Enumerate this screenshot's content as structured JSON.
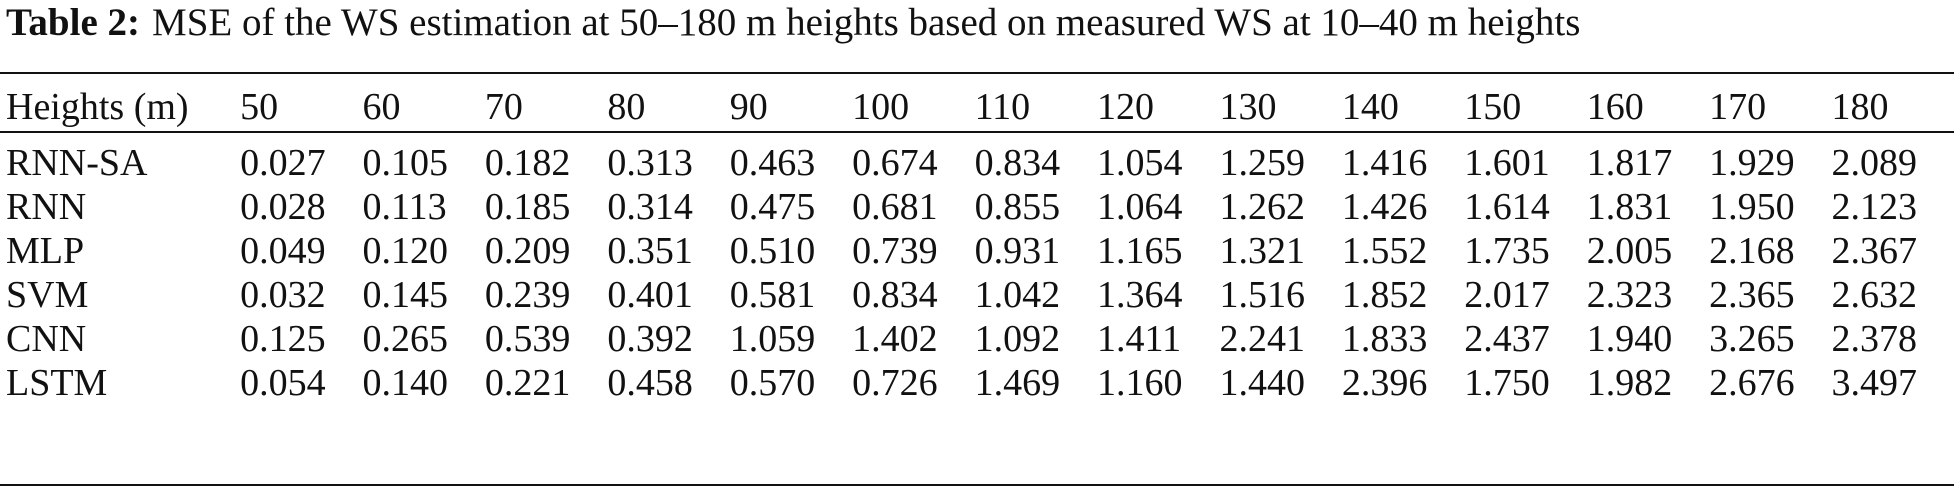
{
  "caption": {
    "label": "Table 2:",
    "text": "MSE of the WS estimation at 50–180 m heights based on measured WS at 10–40 m heights"
  },
  "table": {
    "header_label": "Heights (m)",
    "columns": [
      "50",
      "60",
      "70",
      "80",
      "90",
      "100",
      "110",
      "120",
      "130",
      "140",
      "150",
      "160",
      "170",
      "180"
    ],
    "rows": [
      {
        "name": "RNN-SA",
        "values": [
          "0.027",
          "0.105",
          "0.182",
          "0.313",
          "0.463",
          "0.674",
          "0.834",
          "1.054",
          "1.259",
          "1.416",
          "1.601",
          "1.817",
          "1.929",
          "2.089"
        ]
      },
      {
        "name": "RNN",
        "values": [
          "0.028",
          "0.113",
          "0.185",
          "0.314",
          "0.475",
          "0.681",
          "0.855",
          "1.064",
          "1.262",
          "1.426",
          "1.614",
          "1.831",
          "1.950",
          "2.123"
        ]
      },
      {
        "name": "MLP",
        "values": [
          "0.049",
          "0.120",
          "0.209",
          "0.351",
          "0.510",
          "0.739",
          "0.931",
          "1.165",
          "1.321",
          "1.552",
          "1.735",
          "2.005",
          "2.168",
          "2.367"
        ]
      },
      {
        "name": "SVM",
        "values": [
          "0.032",
          "0.145",
          "0.239",
          "0.401",
          "0.581",
          "0.834",
          "1.042",
          "1.364",
          "1.516",
          "1.852",
          "2.017",
          "2.323",
          "2.365",
          "2.632"
        ]
      },
      {
        "name": "CNN",
        "values": [
          "0.125",
          "0.265",
          "0.539",
          "0.392",
          "1.059",
          "1.402",
          "1.092",
          "1.411",
          "2.241",
          "1.833",
          "2.437",
          "1.940",
          "3.265",
          "2.378"
        ]
      },
      {
        "name": "LSTM",
        "values": [
          "0.054",
          "0.140",
          "0.221",
          "0.458",
          "0.570",
          "0.726",
          "1.469",
          "1.160",
          "1.440",
          "2.396",
          "1.750",
          "1.982",
          "2.676",
          "3.497"
        ]
      }
    ]
  }
}
